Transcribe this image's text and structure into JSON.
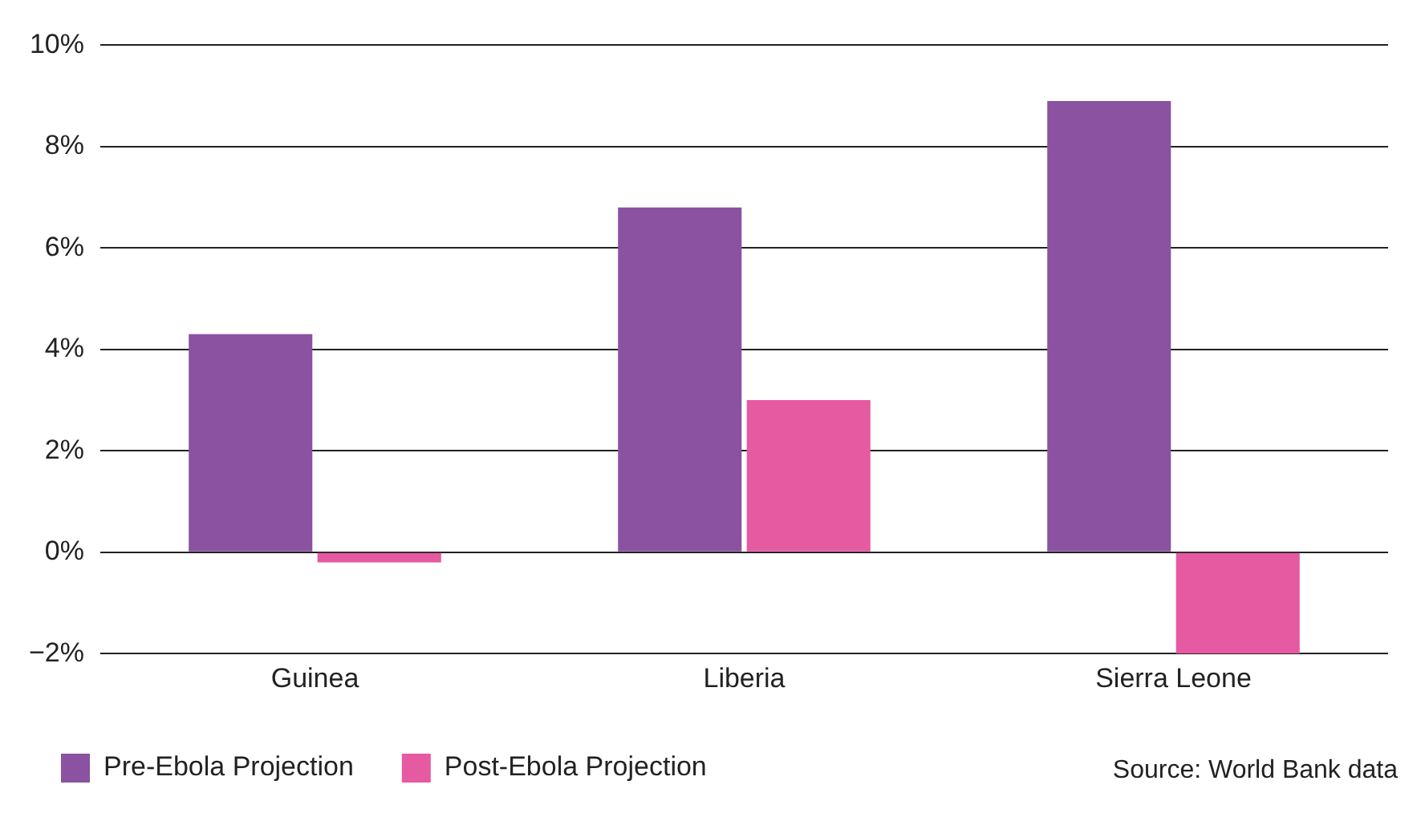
{
  "chart_data": {
    "type": "bar",
    "categories": [
      "Guinea",
      "Liberia",
      "Sierra Leone"
    ],
    "series": [
      {
        "name": "Pre-Ebola Projection",
        "color": "#8a52a0",
        "values": [
          4.3,
          6.8,
          8.9
        ]
      },
      {
        "name": "Post-Ebola Projection",
        "color": "#e55aa0",
        "values": [
          -0.2,
          3.0,
          -2.0
        ]
      }
    ],
    "ylim": [
      -2,
      10
    ],
    "yticks": [
      {
        "value": -2,
        "label": "−2%"
      },
      {
        "value": 0,
        "label": "0%"
      },
      {
        "value": 2,
        "label": "2%"
      },
      {
        "value": 4,
        "label": "4%"
      },
      {
        "value": 6,
        "label": "6%"
      },
      {
        "value": 8,
        "label": "8%"
      },
      {
        "value": 10,
        "label": "10%"
      }
    ],
    "grid": "y",
    "legend": "bottom left",
    "annotations": [
      "Source: World Bank data"
    ]
  }
}
